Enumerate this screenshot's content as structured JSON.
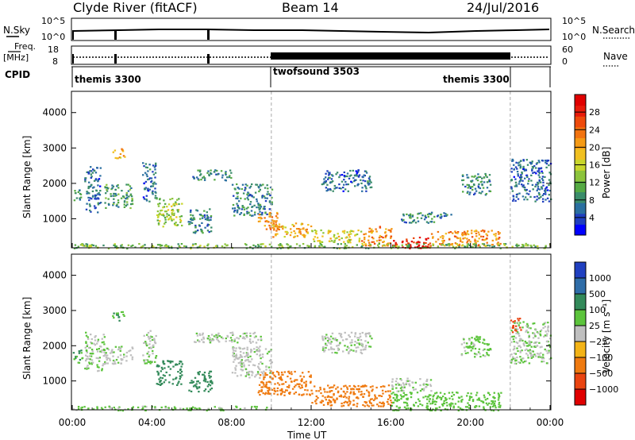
{
  "header": {
    "station": "Clyde River (fitACF)",
    "beam": "Beam 14",
    "date": "24/Jul/2016"
  },
  "summary_panels": {
    "nsky_label": "N.Sky",
    "nsky_ticks": [
      "10^5",
      "10^0"
    ],
    "nsearch_label": "N.Search",
    "freq_label_1": "Freq.",
    "freq_label_2": "[MHz]",
    "freq_ticks": [
      "18",
      "8"
    ],
    "nave_label": "Nave",
    "nave_ticks": [
      "60",
      "0"
    ],
    "cpid_label": "CPID",
    "cpid_segments": [
      {
        "label": "themis 3300",
        "start_hour": 0,
        "end_hour": 10
      },
      {
        "label": "twofsound 3503",
        "start_hour": 10,
        "end_hour": 22
      },
      {
        "label": "themis 3300",
        "start_hour": 22,
        "end_hour": 24
      }
    ]
  },
  "colors": {
    "power_scale": [
      "#0000ff",
      "#1f3fbf",
      "#2a6fa0",
      "#3a8c6a",
      "#55aa44",
      "#8cc43c",
      "#c8d62c",
      "#f0c020",
      "#f59a15",
      "#f27310",
      "#ee4a0c",
      "#e81a0a",
      "#e00000"
    ],
    "velocity_scale": [
      "#2040c0",
      "#2f6da8",
      "#338a5a",
      "#5cc43c",
      "#bfbfbf",
      "#f3b316",
      "#ef7a10",
      "#ea4410",
      "#e00000"
    ],
    "vertical_marker": "#aaaaaa"
  },
  "chart_data": [
    {
      "type": "heatmap",
      "name": "power",
      "ylabel": "Slant Range [km]",
      "yticks": [
        "4000",
        "3000",
        "2000",
        "1000"
      ],
      "ytick_values": [
        4000,
        3000,
        2000,
        1000
      ],
      "ylim": [
        180,
        4600
      ],
      "xlim_hours": [
        0,
        24
      ],
      "colorbar_label": "Power [dB]",
      "colorbar_ticks": [
        "28",
        "24",
        "20",
        "16",
        "12",
        "8",
        "4"
      ],
      "colorbar_range": [
        0,
        32
      ],
      "vertical_markers_hours": [
        10,
        22
      ],
      "patches": [
        {
          "t0": 0.0,
          "t1": 0.4,
          "r0": 1500,
          "r1": 1900,
          "v": 9
        },
        {
          "t0": 0.6,
          "t1": 1.4,
          "r0": 1200,
          "r1": 2500,
          "v": 6
        },
        {
          "t0": 1.6,
          "t1": 3.0,
          "r0": 1300,
          "r1": 2000,
          "v": 10
        },
        {
          "t0": 2.0,
          "t1": 2.6,
          "r0": 2700,
          "r1": 3000,
          "v": 20
        },
        {
          "t0": 3.5,
          "t1": 4.2,
          "r0": 1500,
          "r1": 2600,
          "v": 6
        },
        {
          "t0": 4.2,
          "t1": 5.5,
          "r0": 800,
          "r1": 1600,
          "v": 14
        },
        {
          "t0": 5.8,
          "t1": 7.0,
          "r0": 600,
          "r1": 1300,
          "v": 8
        },
        {
          "t0": 6.0,
          "t1": 8.0,
          "r0": 2100,
          "r1": 2400,
          "v": 8
        },
        {
          "t0": 8.0,
          "t1": 10.0,
          "r0": 1100,
          "r1": 2000,
          "v": 8
        },
        {
          "t0": 9.3,
          "t1": 10.4,
          "r0": 700,
          "r1": 1200,
          "v": 22
        },
        {
          "t0": 10.0,
          "t1": 12.0,
          "r0": 500,
          "r1": 900,
          "v": 20
        },
        {
          "t0": 12.0,
          "t1": 14.5,
          "r0": 350,
          "r1": 700,
          "v": 16
        },
        {
          "t0": 14.5,
          "t1": 16.0,
          "r0": 250,
          "r1": 800,
          "v": 22
        },
        {
          "t0": 16.0,
          "t1": 18.0,
          "r0": 180,
          "r1": 500,
          "v": 29
        },
        {
          "t0": 18.0,
          "t1": 21.5,
          "r0": 250,
          "r1": 700,
          "v": 22
        },
        {
          "t0": 16.5,
          "t1": 19.0,
          "r0": 900,
          "r1": 1200,
          "v": 8
        },
        {
          "t0": 12.5,
          "t1": 15.0,
          "r0": 1800,
          "r1": 2400,
          "v": 6
        },
        {
          "t0": 19.5,
          "t1": 21.0,
          "r0": 1700,
          "r1": 2300,
          "v": 8
        },
        {
          "t0": 22.0,
          "t1": 24.0,
          "r0": 1500,
          "r1": 2700,
          "v": 6
        },
        {
          "t0": 0.0,
          "t1": 24.0,
          "r0": 180,
          "r1": 320,
          "v": 12
        }
      ]
    },
    {
      "type": "heatmap",
      "name": "velocity",
      "ylabel": "Slant Range [km]",
      "yticks": [
        "4000",
        "3000",
        "2000",
        "1000"
      ],
      "ytick_values": [
        4000,
        3000,
        2000,
        1000
      ],
      "ylim": [
        180,
        4600
      ],
      "xlim_hours": [
        0,
        24
      ],
      "colorbar_label": "Velocity [m s⁻¹]",
      "colorbar_ticks": [
        "1000",
        "500",
        "100",
        "25",
        "−25",
        "−100",
        "−500",
        "−1000"
      ],
      "vertical_markers_hours": [
        10,
        22
      ],
      "patches": [
        {
          "t0": 0.0,
          "t1": 0.5,
          "r0": 1500,
          "r1": 1900,
          "v": 100
        },
        {
          "t0": 0.6,
          "t1": 1.6,
          "r0": 1300,
          "r1": 2400,
          "v": 25
        },
        {
          "t0": 1.6,
          "t1": 3.0,
          "r0": 1500,
          "r1": 2000,
          "v": 10
        },
        {
          "t0": 2.0,
          "t1": 2.6,
          "r0": 2700,
          "r1": 3000,
          "v": 100
        },
        {
          "t0": 3.5,
          "t1": 4.2,
          "r0": 1500,
          "r1": 2500,
          "v": 10
        },
        {
          "t0": 4.2,
          "t1": 5.5,
          "r0": 900,
          "r1": 1600,
          "v": 200
        },
        {
          "t0": 5.8,
          "t1": 7.0,
          "r0": 700,
          "r1": 1300,
          "v": 300
        },
        {
          "t0": 6.0,
          "t1": 9.5,
          "r0": 2100,
          "r1": 2400,
          "v": 10
        },
        {
          "t0": 8.0,
          "t1": 10.0,
          "r0": 1100,
          "r1": 2000,
          "v": 10
        },
        {
          "t0": 9.3,
          "t1": 12.0,
          "r0": 600,
          "r1": 1300,
          "v": -300
        },
        {
          "t0": 12.0,
          "t1": 16.0,
          "r0": 300,
          "r1": 900,
          "v": -300
        },
        {
          "t0": 16.0,
          "t1": 21.5,
          "r0": 180,
          "r1": 700,
          "v": 60
        },
        {
          "t0": 16.0,
          "t1": 18.0,
          "r0": 700,
          "r1": 1100,
          "v": 10
        },
        {
          "t0": 12.5,
          "t1": 15.0,
          "r0": 1800,
          "r1": 2400,
          "v": 10
        },
        {
          "t0": 19.5,
          "t1": 21.0,
          "r0": 1700,
          "r1": 2300,
          "v": 40
        },
        {
          "t0": 22.0,
          "t1": 24.0,
          "r0": 1500,
          "r1": 2700,
          "v": 25
        },
        {
          "t0": 22.0,
          "t1": 22.5,
          "r0": 2400,
          "r1": 2800,
          "v": -600
        },
        {
          "t0": 0.0,
          "t1": 10.0,
          "r0": 180,
          "r1": 300,
          "v": 40
        }
      ]
    }
  ],
  "time_axis": {
    "label": "Time UT",
    "ticks": [
      "00:00",
      "04:00",
      "08:00",
      "12:00",
      "16:00",
      "20:00",
      "00:00"
    ],
    "tick_hours": [
      0,
      4,
      8,
      12,
      16,
      20,
      24
    ]
  }
}
